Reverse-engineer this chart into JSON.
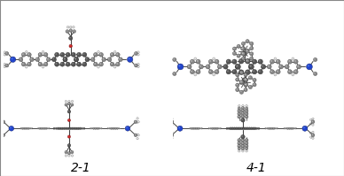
{
  "background_color": "#ffffff",
  "label_2_1": "2-1",
  "label_4_1": "4-1",
  "label_fontsize": 10,
  "figsize": [
    3.88,
    1.99
  ],
  "dpi": 100,
  "atom_gray_dark": "#555555",
  "atom_gray_mid": "#888888",
  "atom_gray_light": "#aaaaaa",
  "atom_blue_dark": "#1a1a8c",
  "atom_blue": "#2244cc",
  "atom_red": "#cc2222",
  "atom_white_fg": "#e8e8e8",
  "atom_white_bg": "#bbbbbb",
  "bond_color": "#444444"
}
